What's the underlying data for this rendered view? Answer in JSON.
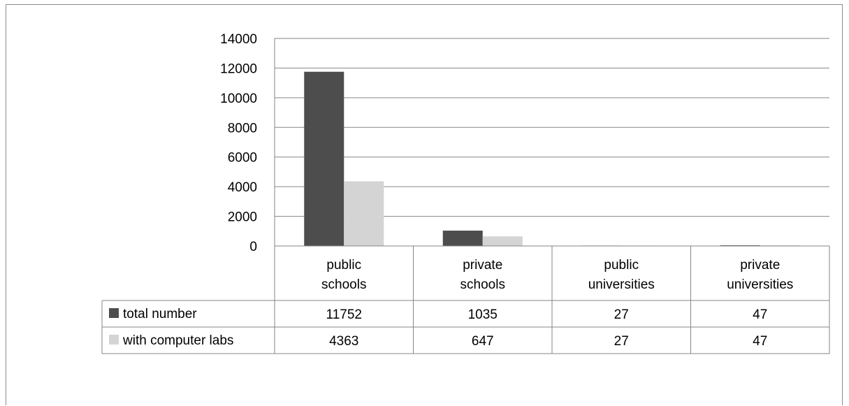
{
  "chart_data": {
    "type": "bar",
    "title": "",
    "xlabel": "",
    "ylabel": "",
    "ylim": [
      0,
      14000
    ],
    "yticks": [
      0,
      2000,
      4000,
      6000,
      8000,
      10000,
      12000,
      14000
    ],
    "grid": true,
    "data_table": true,
    "categories": [
      [
        "public",
        "schools"
      ],
      [
        "private",
        "schools"
      ],
      [
        "public",
        "universities"
      ],
      [
        "private",
        "universities"
      ]
    ],
    "series": [
      {
        "name": "total number",
        "color": "#4d4d4d",
        "values": [
          11752,
          1035,
          27,
          47
        ]
      },
      {
        "name": "with computer labs",
        "color": "#d4d4d4",
        "values": [
          4363,
          647,
          27,
          47
        ]
      }
    ]
  }
}
